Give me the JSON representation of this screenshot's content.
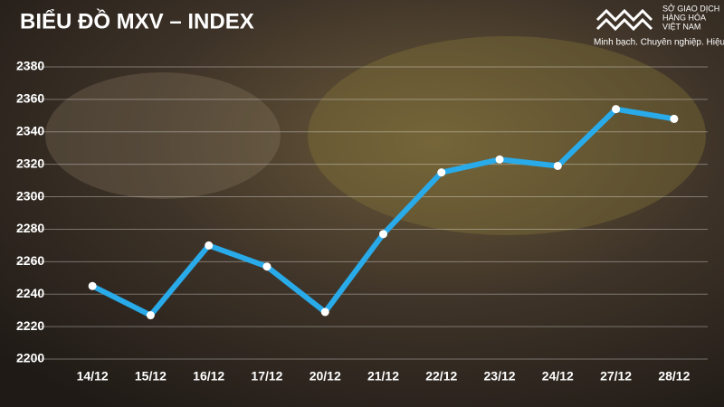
{
  "chart_data": {
    "type": "line",
    "title": "BIỂU ĐỒ MXV – INDEX",
    "categories": [
      "14/12",
      "15/12",
      "16/12",
      "17/12",
      "20/12",
      "21/12",
      "22/12",
      "23/12",
      "24/12",
      "27/12",
      "28/12"
    ],
    "series": [
      {
        "color": "#29aae9",
        "values": [
          2245,
          2227,
          2270,
          2257,
          2229,
          2277,
          2315,
          2323,
          2319,
          2354,
          2348
        ]
      }
    ],
    "ylim": [
      2200,
      2380
    ],
    "yticks": [
      2200,
      2220,
      2240,
      2260,
      2280,
      2300,
      2320,
      2340,
      2360,
      2380
    ],
    "grid": true
  },
  "logo": {
    "name_lines": [
      "SỞ GIAO DỊCH",
      "HÀNG HÓA",
      "VIỆT NAM"
    ],
    "slogan": "Minh bạch. Chuyên nghiệp. Hiệu quả"
  }
}
